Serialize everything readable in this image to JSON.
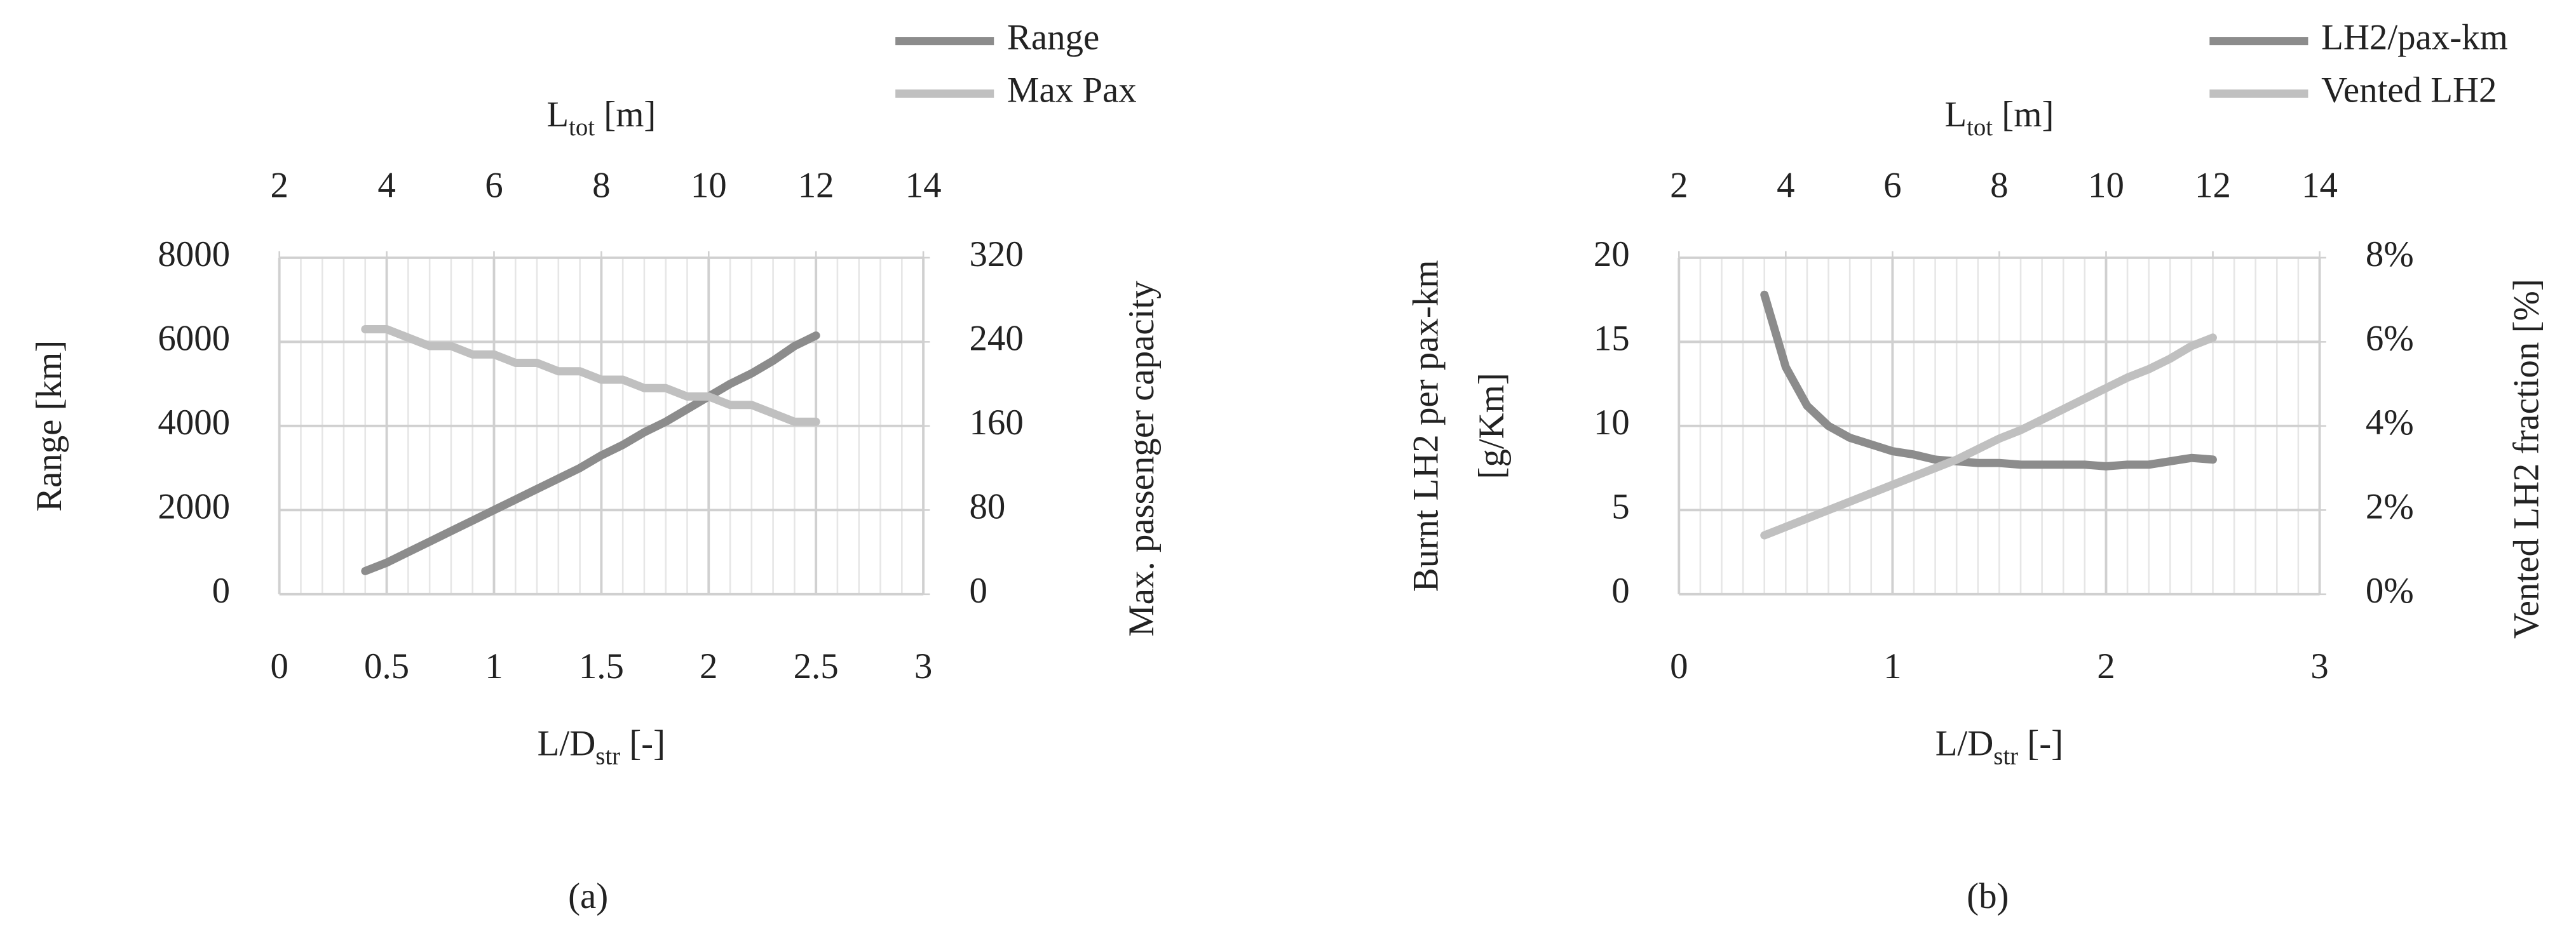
{
  "chart_data": [
    {
      "type": "line",
      "x": [
        0.4,
        0.5,
        0.6,
        0.7,
        0.8,
        0.9,
        1.0,
        1.1,
        1.2,
        1.3,
        1.4,
        1.5,
        1.6,
        1.7,
        1.8,
        1.9,
        2.0,
        2.1,
        2.2,
        2.3,
        2.4,
        2.5
      ],
      "xlim": [
        0,
        3
      ],
      "xticks": [
        0,
        0.5,
        1,
        1.5,
        2,
        2.5,
        3
      ],
      "x2lim": [
        2,
        14
      ],
      "x2ticks": [
        2,
        4,
        6,
        8,
        10,
        12,
        14
      ],
      "ylim": [
        0,
        8000
      ],
      "yticks": [
        0,
        2000,
        4000,
        6000,
        8000
      ],
      "y2lim": [
        0,
        320
      ],
      "y2ticks": [
        0,
        80,
        160,
        240,
        320
      ],
      "x_label": {
        "main": "L/D",
        "sub": "str",
        "rest": " [-]"
      },
      "x2_label": {
        "main": "L",
        "sub": "tot",
        "rest": " [m]"
      },
      "y_label": [
        "Range [km]"
      ],
      "y2_label": "Max. passenger capacity",
      "grid": true,
      "minor_grid_step": 0.1,
      "legend": "top-right",
      "caption": "(a)",
      "series": [
        {
          "name": "Range",
          "color": "#8c8c8c",
          "values": [
            550,
            750,
            1000,
            1250,
            1500,
            1750,
            2000,
            2250,
            2500,
            2750,
            3000,
            3300,
            3550,
            3850,
            4100,
            4400,
            4700,
            5000,
            5250,
            5550,
            5900,
            6150
          ]
        },
        {
          "name": "Max Pax",
          "color": "#c0c0c0",
          "axis": "y2",
          "values": [
            252,
            252,
            244,
            236,
            236,
            228,
            228,
            220,
            220,
            212,
            212,
            204,
            204,
            196,
            196,
            188,
            188,
            180,
            180,
            172,
            164,
            164
          ]
        }
      ]
    },
    {
      "type": "line",
      "x": [
        0.4,
        0.5,
        0.6,
        0.7,
        0.8,
        0.9,
        1.0,
        1.1,
        1.2,
        1.3,
        1.4,
        1.5,
        1.6,
        1.7,
        1.8,
        1.9,
        2.0,
        2.1,
        2.2,
        2.3,
        2.4,
        2.5
      ],
      "xlim": [
        0,
        3
      ],
      "xticks": [
        0,
        1,
        2,
        3
      ],
      "x2lim": [
        2,
        14
      ],
      "x2ticks": [
        2,
        4,
        6,
        8,
        10,
        12,
        14
      ],
      "ylim": [
        0,
        20
      ],
      "yticks": [
        0,
        5,
        10,
        15,
        20
      ],
      "y2lim": [
        0,
        8
      ],
      "y2ticks": [
        {
          "value": 0,
          "label": "0%"
        },
        {
          "value": 2,
          "label": "2%"
        },
        {
          "value": 4,
          "label": "4%"
        },
        {
          "value": 6,
          "label": "6%"
        },
        {
          "value": 8,
          "label": "8%"
        }
      ],
      "x_label": {
        "main": "L/D",
        "sub": "str",
        "rest": " [-]"
      },
      "x2_label": {
        "main": "L",
        "sub": "tot",
        "rest": " [m]"
      },
      "y_label": [
        "Burnt LH2 per pax-km",
        "[g/Km]"
      ],
      "y2_label": "Vented LH2 fraction [%]",
      "grid": true,
      "minor_grid_step": 0.1,
      "legend": "top-right",
      "caption": "(b)",
      "series": [
        {
          "name": "LH2/pax-km",
          "color": "#8c8c8c",
          "values": [
            17.8,
            13.5,
            11.2,
            10.0,
            9.3,
            8.9,
            8.5,
            8.3,
            8.0,
            7.9,
            7.8,
            7.8,
            7.7,
            7.7,
            7.7,
            7.7,
            7.6,
            7.7,
            7.7,
            7.9,
            8.1,
            8.0
          ]
        },
        {
          "name": "Vented LH2",
          "color": "#c0c0c0",
          "axis": "y2",
          "values": [
            1.4,
            1.6,
            1.8,
            2.0,
            2.2,
            2.4,
            2.6,
            2.8,
            3.0,
            3.2,
            3.45,
            3.7,
            3.9,
            4.15,
            4.4,
            4.65,
            4.9,
            5.15,
            5.35,
            5.6,
            5.9,
            6.1
          ]
        }
      ]
    }
  ]
}
